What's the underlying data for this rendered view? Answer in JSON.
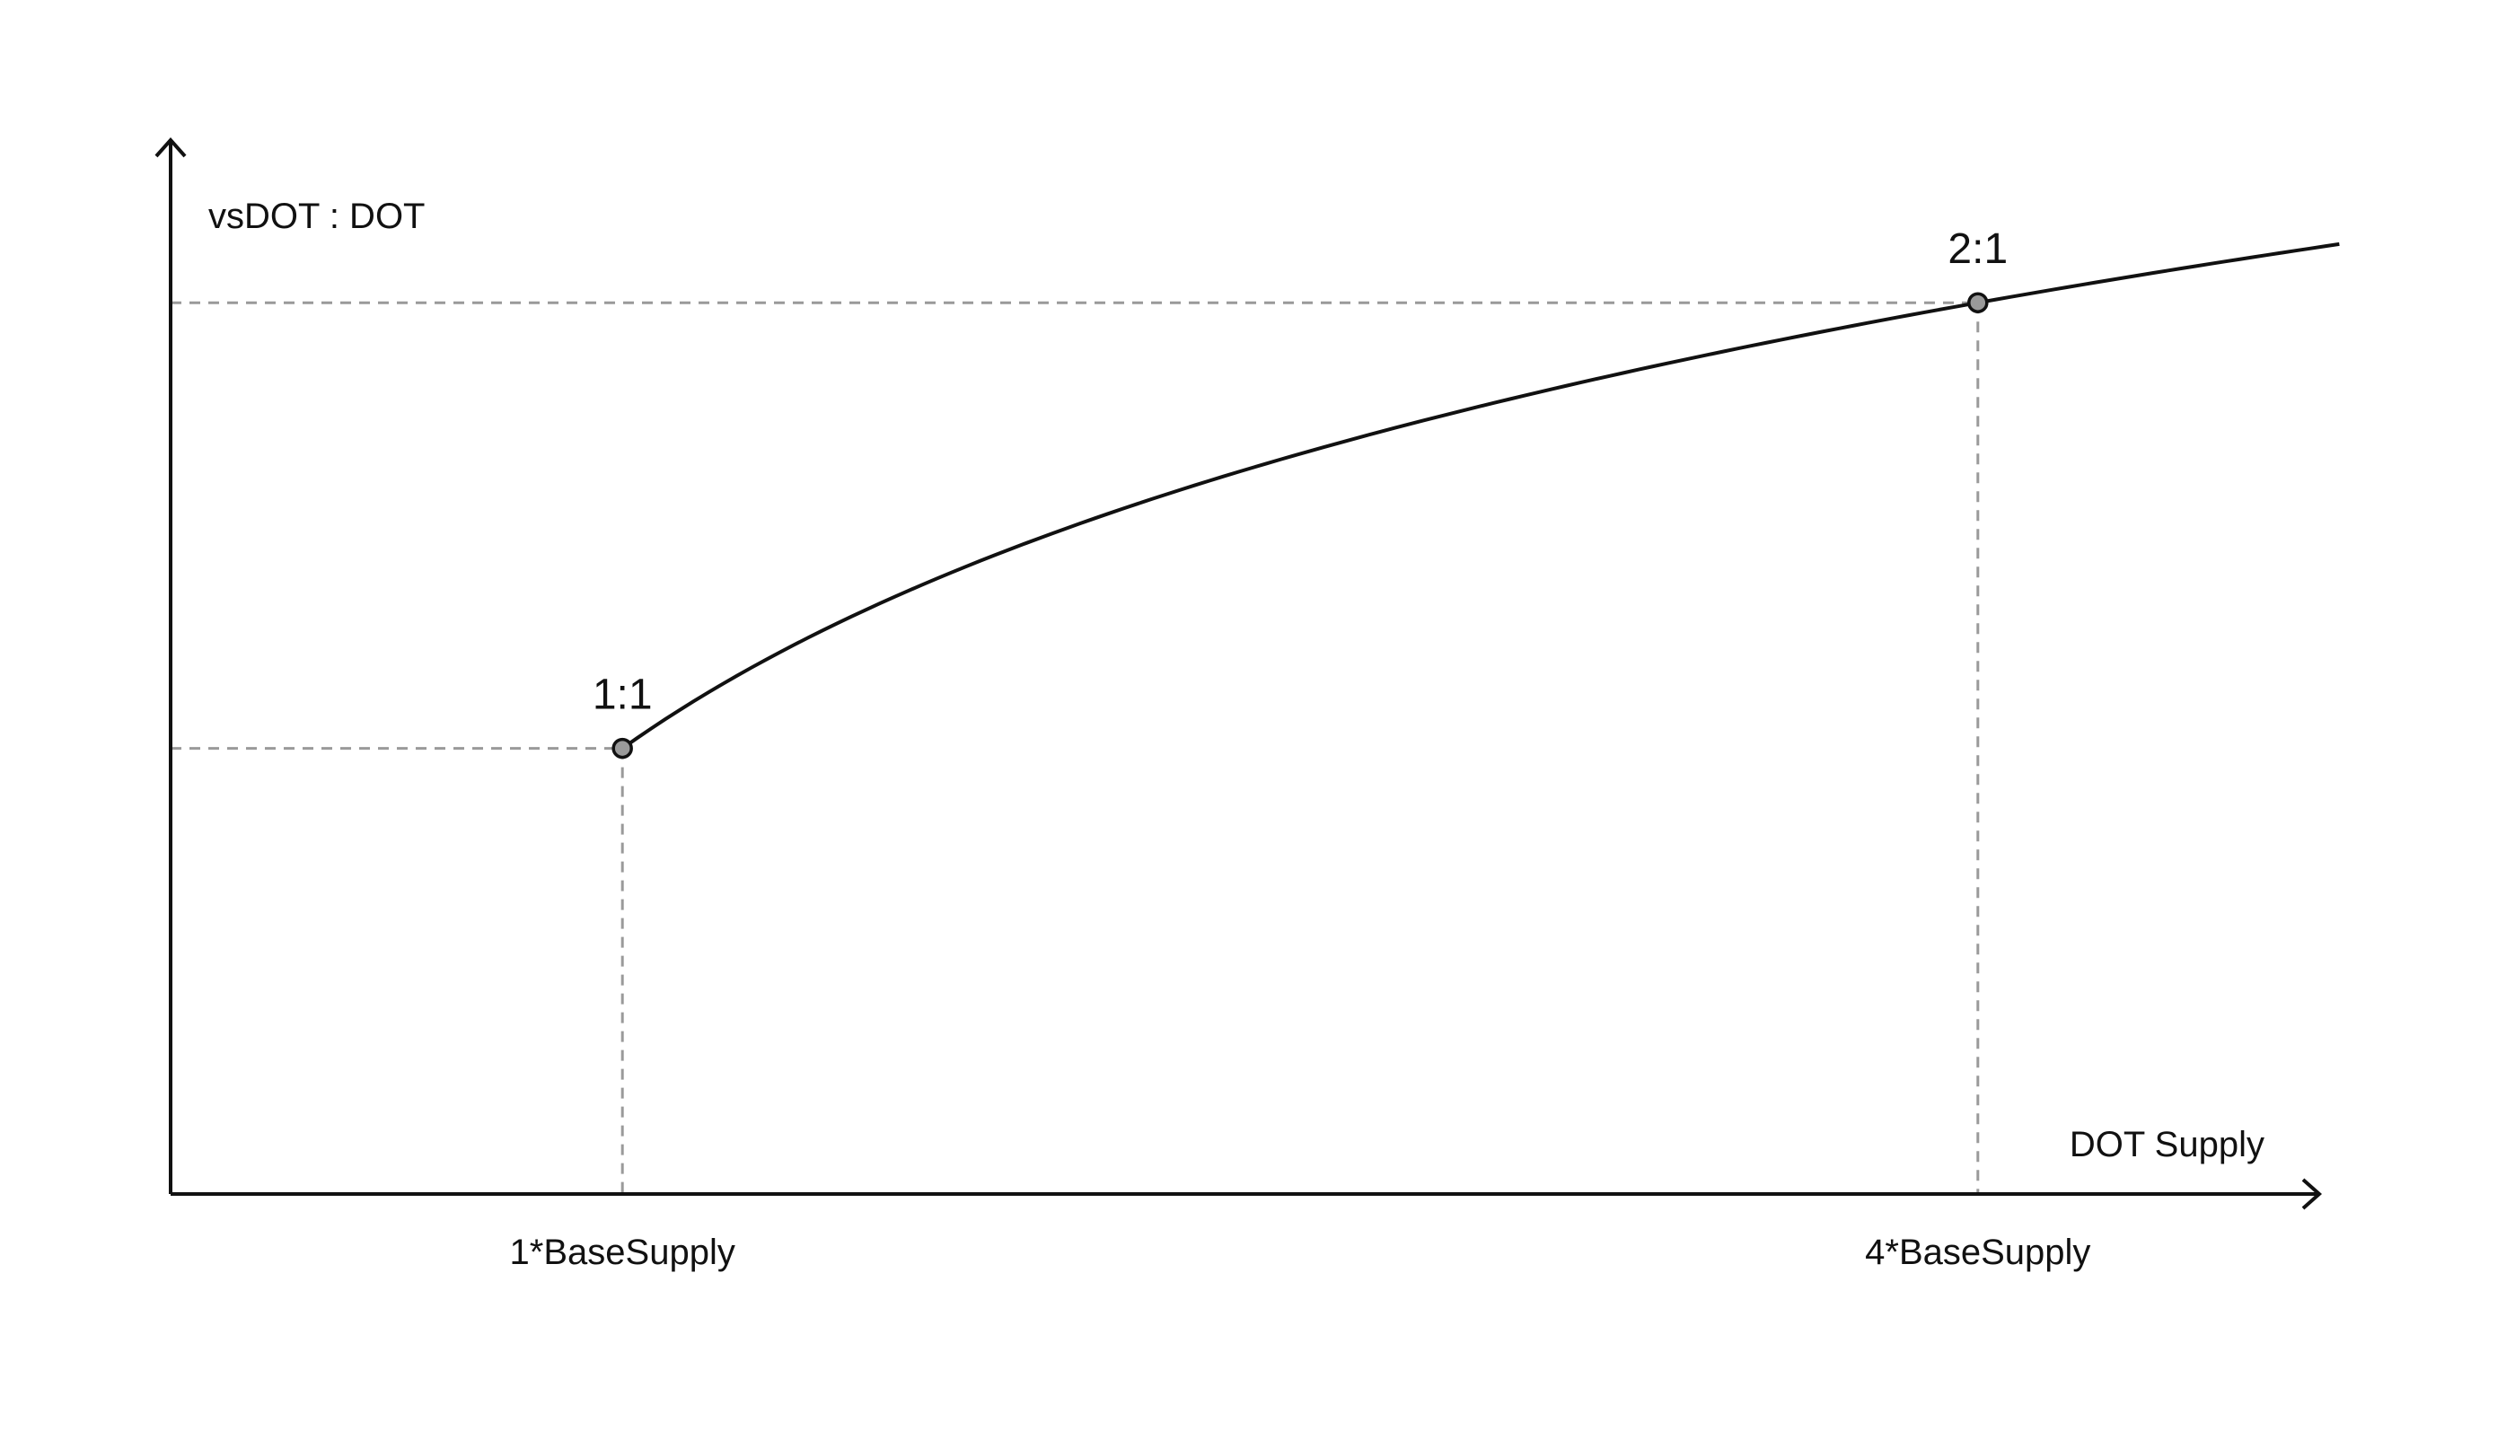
{
  "chart_data": {
    "type": "line",
    "title": "",
    "xlabel": "DOT Supply",
    "ylabel": "vsDOT : DOT",
    "x_ticks": [
      {
        "value": 1,
        "label": "1*BaseSupply"
      },
      {
        "value": 4,
        "label": "4*BaseSupply"
      }
    ],
    "points": [
      {
        "x": 1,
        "y": 1,
        "label": "1:1"
      },
      {
        "x": 4,
        "y": 2,
        "label": "2:1"
      }
    ],
    "curve": {
      "formula": "y = 1 + log2(x) / 2",
      "x_start": 1,
      "x_end": 4.8
    },
    "xlim": [
      0,
      5.0
    ],
    "ylim": [
      0,
      3.0
    ],
    "grid": false,
    "colors": {
      "axis": "#111111",
      "curve": "#111111",
      "guide": "#9a9a9a",
      "marker_fill": "#9a9a9a"
    }
  }
}
